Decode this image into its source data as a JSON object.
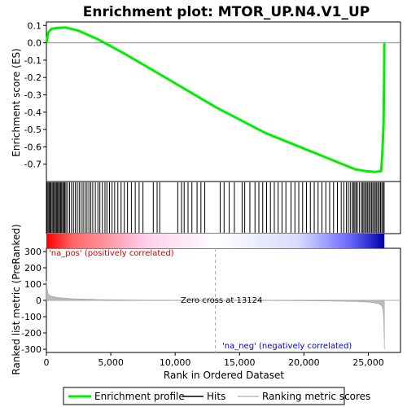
{
  "chart_data": {
    "type": "line",
    "title": "Enrichment plot: MTOR_UP.N4.V1_UP",
    "xlabel": "Rank in Ordered Dataset",
    "ylabel_top": "Enrichment score (ES)",
    "ylabel_bottom": "Ranked list metric (PreRanked)",
    "xlim": [
      0,
      27500
    ],
    "ylim_top": [
      -0.8,
      0.12
    ],
    "ylim_bottom": [
      -320,
      320
    ],
    "x_ticks": [
      0,
      5000,
      10000,
      15000,
      20000,
      25000
    ],
    "x_tick_labels": [
      "0",
      "5,000",
      "10,000",
      "15,000",
      "20,000",
      "25,000"
    ],
    "y_ticks_top": [
      0.1,
      0.0,
      -0.1,
      -0.2,
      -0.3,
      -0.4,
      -0.5,
      -0.6,
      -0.7
    ],
    "y_tick_labels_top": [
      "0.1",
      "0.0",
      "-0.1",
      "-0.2",
      "-0.3",
      "-0.4",
      "-0.5",
      "-0.6",
      "-0.7"
    ],
    "y_ticks_bottom": [
      300,
      200,
      100,
      0,
      -100,
      -200,
      -300
    ],
    "y_tick_labels_bottom": [
      "300",
      "200",
      "100",
      "0",
      "-100",
      "-200",
      "-300"
    ],
    "grid": false,
    "series": [
      {
        "name": "Enrichment profile",
        "color": "#00ee00",
        "x": [
          0,
          150,
          400,
          800,
          1500,
          2500,
          4000,
          6000,
          9000,
          13124,
          17000,
          21000,
          24000,
          24800,
          25500,
          26000,
          26100,
          26180,
          26220,
          26250
        ],
        "y": [
          0.0,
          0.06,
          0.08,
          0.085,
          0.088,
          0.07,
          0.02,
          -0.06,
          -0.19,
          -0.37,
          -0.52,
          -0.64,
          -0.73,
          -0.74,
          -0.745,
          -0.74,
          -0.62,
          -0.48,
          -0.25,
          0.0
        ]
      }
    ],
    "hit_positions": [
      50,
      130,
      210,
      290,
      360,
      450,
      530,
      620,
      700,
      780,
      860,
      940,
      1020,
      1100,
      1180,
      1270,
      1350,
      1430,
      1520,
      1650,
      1800,
      1950,
      2100,
      2250,
      2400,
      2550,
      2700,
      2850,
      3000,
      3150,
      3300,
      3450,
      3600,
      3800,
      4000,
      4150,
      4350,
      4550,
      4700,
      4900,
      5100,
      5300,
      5550,
      5800,
      6050,
      6300,
      6600,
      6900,
      7200,
      7500,
      8300,
      8600,
      8800,
      10200,
      10500,
      10700,
      11000,
      11300,
      11700,
      12000,
      12300,
      13500,
      13800,
      14200,
      14600,
      15200,
      15400,
      15800,
      16200,
      16500,
      16800,
      17100,
      17400,
      17700,
      18000,
      18300,
      18600,
      19000,
      19300,
      19600,
      19900,
      20200,
      20500,
      20800,
      21100,
      21400,
      21700,
      22000,
      22300,
      22600,
      22900,
      23100,
      23300,
      23450,
      23600,
      23750,
      23850,
      23950,
      24050,
      24150,
      24300,
      24450,
      24550,
      24650,
      24750,
      24850,
      24950,
      25050,
      25150,
      25250,
      25350,
      25450,
      25550,
      25650,
      25750,
      25850,
      25950,
      26050,
      26150,
      26230
    ],
    "zero_cross": 13124,
    "zero_cross_label": "Zero cross at 13124",
    "pos_label": "'na_pos' (positively correlated)",
    "neg_label": "'na_neg' (negatively correlated)",
    "metric_profile": {
      "x": [
        0,
        100,
        300,
        800,
        2000,
        4000,
        7000,
        10000,
        13124,
        16000,
        19000,
        22000,
        24000,
        25200,
        25800,
        26050,
        26150,
        26200,
        26240,
        26250
      ],
      "y": [
        120,
        45,
        28,
        18,
        10,
        5,
        2,
        1,
        0,
        -1,
        -2,
        -4,
        -7,
        -12,
        -20,
        -35,
        -60,
        -120,
        -250,
        -300
      ]
    },
    "legend": [
      {
        "label": "Enrichment profile",
        "color": "#00ee00",
        "kind": "line"
      },
      {
        "label": "Hits",
        "color": "#000000",
        "kind": "line"
      },
      {
        "label": "Ranking metric scores",
        "color": "#bbbbbb",
        "kind": "line"
      }
    ],
    "legend_position": "bottom",
    "colors": {
      "pos_label": "#cc0000",
      "neg_label": "#0000cc",
      "zero_line": "#888888",
      "zero_cross_line": "#aaaaaa"
    }
  }
}
